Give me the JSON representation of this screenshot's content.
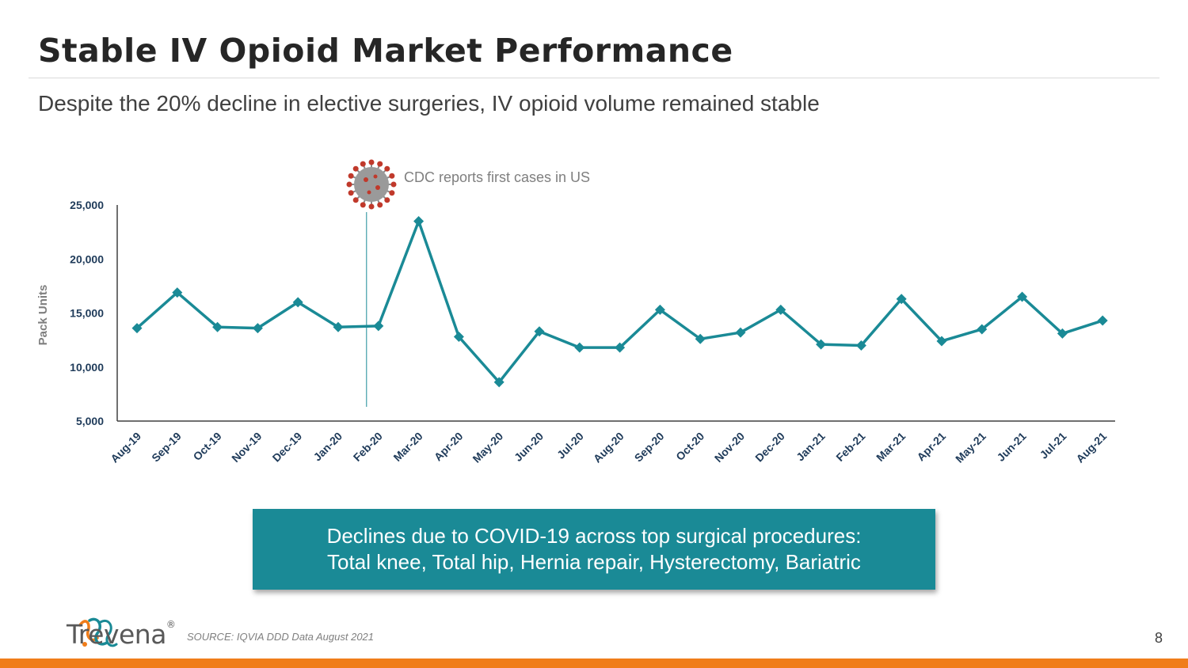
{
  "slide": {
    "title": "Stable IV Opioid Market Performance",
    "subtitle": "Despite the 20% decline in elective surgeries, IV opioid volume remained stable",
    "callout_line1": "Declines due to COVID-19 across top surgical procedures:",
    "callout_line2": "Total knee, Total hip, Hernia repair, Hysterectomy, Bariatric",
    "source": "SOURCE: IQVIA DDD Data August 2021",
    "page_number": "8",
    "logo_text": "Trevena",
    "logo_mark": "®",
    "accent_color": "#1a8a96",
    "bar_color": "#f07d1a"
  },
  "chart_data": {
    "type": "line",
    "ylabel": "Pack Units",
    "ylim": [
      5000,
      25000
    ],
    "yticks": [
      5000,
      10000,
      15000,
      20000,
      25000
    ],
    "categories": [
      "Aug-19",
      "Sep-19",
      "Oct-19",
      "Nov-19",
      "Dec-19",
      "Jan-20",
      "Feb-20",
      "Mar-20",
      "Apr-20",
      "May-20",
      "Jun-20",
      "Jul-20",
      "Aug-20",
      "Sep-20",
      "Oct-20",
      "Nov-20",
      "Dec-20",
      "Jan-21",
      "Feb-21",
      "Mar-21",
      "Apr-21",
      "May-21",
      "Jun-21",
      "Jul-21",
      "Aug-21"
    ],
    "values": [
      13600,
      16900,
      13700,
      13600,
      16000,
      13700,
      13800,
      23500,
      12800,
      8600,
      13300,
      11800,
      11800,
      15300,
      12600,
      13200,
      15300,
      12100,
      12000,
      16300,
      12400,
      13500,
      16500,
      13100,
      14300
    ],
    "line_color": "#1a8a96",
    "grid": false,
    "annotation": {
      "text": "CDC reports first cases in US",
      "x": "Feb-20",
      "icon": "coronavirus-icon"
    }
  }
}
